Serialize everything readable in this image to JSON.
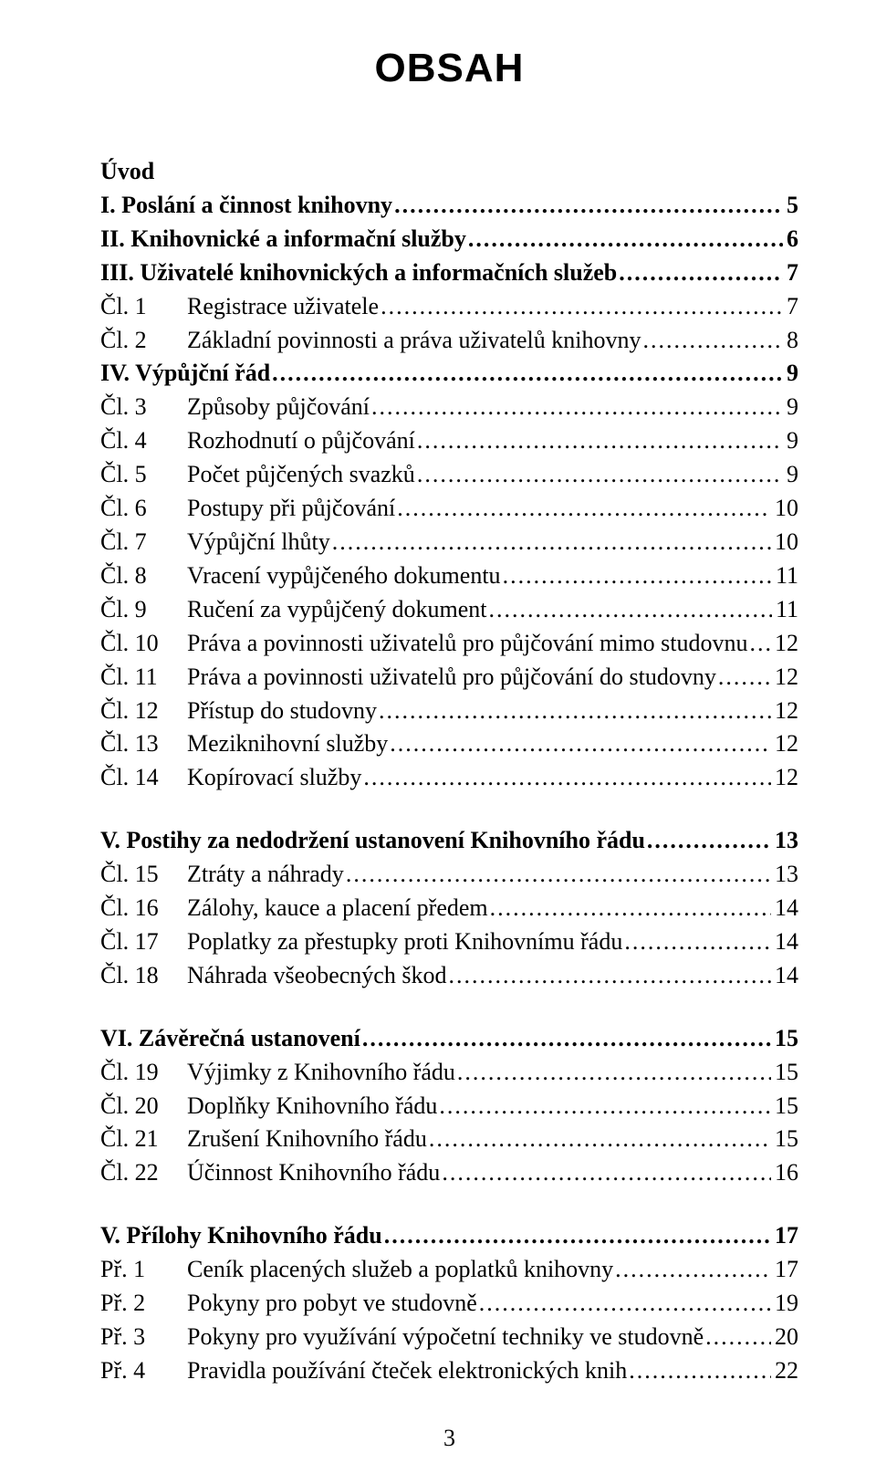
{
  "title": "OBSAH",
  "page_number": "3",
  "colors": {
    "text": "#000000",
    "background": "#ffffff"
  },
  "typography": {
    "title_font": "Arial",
    "body_font": "Times New Roman",
    "title_size_pt": 32,
    "body_size_pt": 19
  },
  "groups": [
    {
      "rows": [
        {
          "label": "",
          "text": "Úvod",
          "page": "",
          "bold": true,
          "nolabel": true,
          "no_dots": true
        },
        {
          "label": "",
          "text": "I. Poslání a činnost knihovny",
          "page": "5",
          "bold": true,
          "nolabel": true
        },
        {
          "label": "",
          "text": "II. Knihovnické a informační služby",
          "page": "6",
          "bold": true,
          "nolabel": true
        },
        {
          "label": "",
          "text": "III. Uživatelé knihovnických a informačních služeb",
          "page": "7",
          "bold": true,
          "nolabel": true
        },
        {
          "label": "Čl. 1",
          "text": "Registrace uživatele",
          "page": "7"
        },
        {
          "label": "Čl. 2",
          "text": "Základní povinnosti a práva uživatelů knihovny",
          "page": "8"
        },
        {
          "label": "",
          "text": "IV. Výpůjční řád",
          "page": "9",
          "bold": true,
          "nolabel": true
        },
        {
          "label": "Čl. 3",
          "text": "Způsoby půjčování",
          "page": "9"
        },
        {
          "label": "Čl. 4",
          "text": "Rozhodnutí o půjčování",
          "page": "9"
        },
        {
          "label": "Čl. 5",
          "text": "Počet půjčených svazků",
          "page": "9"
        },
        {
          "label": "Čl. 6",
          "text": "Postupy při půjčování",
          "page": "10"
        },
        {
          "label": "Čl. 7",
          "text": "Výpůjční lhůty",
          "page": "10"
        },
        {
          "label": "Čl. 8",
          "text": "Vracení vypůjčeného dokumentu",
          "page": "11"
        },
        {
          "label": "Čl. 9",
          "text": "Ručení za vypůjčený dokument",
          "page": "11"
        },
        {
          "label": "Čl. 10",
          "text": "Práva a povinnosti uživatelů pro půjčování mimo studovnu",
          "page": "12"
        },
        {
          "label": "Čl. 11",
          "text": "Práva a povinnosti uživatelů pro půjčování do studovny",
          "page": "12"
        },
        {
          "label": "Čl. 12",
          "text": "Přístup do studovny",
          "page": "12"
        },
        {
          "label": "Čl. 13",
          "text": "Meziknihovní služby",
          "page": "12"
        },
        {
          "label": "Čl. 14",
          "text": "Kopírovací služby",
          "page": "12"
        }
      ]
    },
    {
      "rows": [
        {
          "label": "",
          "text": "V. Postihy za nedodržení ustanovení Knihovního řádu",
          "page": "13",
          "bold": true,
          "nolabel": true
        },
        {
          "label": "Čl. 15",
          "text": "Ztráty a náhrady",
          "page": "13"
        },
        {
          "label": "Čl. 16",
          "text": "Zálohy, kauce a placení předem",
          "page": "14"
        },
        {
          "label": "Čl. 17",
          "text": "Poplatky za přestupky proti Knihovnímu řádu",
          "page": "14"
        },
        {
          "label": "Čl. 18",
          "text": "Náhrada všeobecných škod",
          "page": "14"
        }
      ]
    },
    {
      "rows": [
        {
          "label": "",
          "text": "VI. Závěrečná ustanovení",
          "page": "15",
          "bold": true,
          "nolabel": true
        },
        {
          "label": "Čl. 19",
          "text": "Výjimky z Knihovního řádu",
          "page": "15"
        },
        {
          "label": "Čl. 20",
          "text": "Doplňky Knihovního řádu",
          "page": "15"
        },
        {
          "label": "Čl. 21",
          "text": "Zrušení Knihovního řádu",
          "page": "15"
        },
        {
          "label": "Čl. 22",
          "text": "Účinnost Knihovního řádu",
          "page": "16"
        }
      ]
    },
    {
      "rows": [
        {
          "label": "",
          "text": "V. Přílohy Knihovního řádu",
          "page": " 17",
          "bold": true,
          "nolabel": true
        },
        {
          "label": "Př. 1",
          "text": "Ceník placených služeb a poplatků knihovny",
          "page": " 17"
        },
        {
          "label": "Př. 2",
          "text": "Pokyny pro pobyt ve studovně",
          "page": " 19"
        },
        {
          "label": "Př. 3",
          "text": "Pokyny pro využívání výpočetní techniky ve studovně",
          "page": " 20"
        },
        {
          "label": "Př. 4",
          "text": "Pravidla používání čteček elektronických knih",
          "page": " 22"
        }
      ]
    }
  ]
}
